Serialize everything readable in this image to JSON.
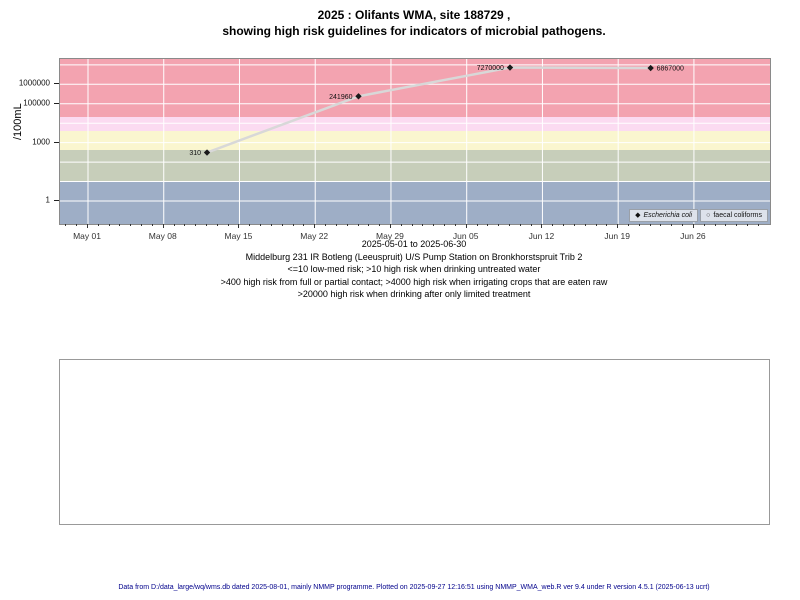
{
  "title": {
    "line1": "2025 : Olifants WMA, site 188729 ,",
    "line2": "showing high risk guidelines for indicators of microbial pathogens."
  },
  "chart_data": {
    "type": "line",
    "y_scale": "log10",
    "ylabel": "/100mL",
    "y_tick_values": [
      1000000,
      100000,
      1000,
      1
    ],
    "y_tick_labels": [
      "1000000",
      "100000",
      "1000",
      "1"
    ],
    "grid_decades": [
      1,
      10,
      100,
      1000,
      10000,
      100000,
      1000000,
      10000000
    ],
    "x_tick_labels": [
      "May 01",
      "May 08",
      "May 15",
      "May 22",
      "May 29",
      "Jun 05",
      "Jun 12",
      "Jun 19",
      "Jun 26"
    ],
    "x_range_label": "2025-05-01 to 2025-06-30",
    "x_start_date": "2025-05-01",
    "series": [
      {
        "name": "Escherichia coli",
        "marker": "filled-diamond",
        "line_color": "#d8d8d8",
        "point_color": "#1a1a1a",
        "points": [
          {
            "date": "2025-05-12",
            "value": 310,
            "label": "310",
            "label_side": "left"
          },
          {
            "date": "2025-05-26",
            "value": 241960,
            "label": "241960",
            "label_side": "left"
          },
          {
            "date": "2025-06-09",
            "value": 7270000,
            "label": "7270000",
            "label_side": "left"
          },
          {
            "date": "2025-06-22",
            "value": 6867000,
            "label": "6867000",
            "label_side": "right"
          }
        ]
      },
      {
        "name": "faecal coliforms",
        "marker": "open-circle",
        "points": []
      }
    ],
    "risk_bands": [
      {
        "range": "<=10",
        "meaning": "low-med risk",
        "color": "#9eaec6",
        "upper": 10
      },
      {
        "range": ">10",
        "meaning": "high risk when drinking untreated water",
        "color": "#c7ceba",
        "upper": 400
      },
      {
        "range": ">400",
        "meaning": "high risk from full or partial contact",
        "color": "#faf6cf",
        "upper": 4000
      },
      {
        "range": ">4000",
        "meaning": "high risk when irrigating crops that are eaten raw",
        "color": "#fbdbf1",
        "upper": 20000
      },
      {
        "range": ">20000",
        "meaning": "high risk when drinking after only limited treatment",
        "color": "#f3a3b0",
        "upper": null
      }
    ],
    "grid_color": "#ffffff",
    "legend_position": "bottom-right"
  },
  "legend": {
    "items": [
      {
        "label": "Escherichia coli",
        "marker": "filled-diamond",
        "italic": true
      },
      {
        "label": "faecal coliforms",
        "marker": "open-circle",
        "italic": false
      }
    ]
  },
  "captions": [
    "2025-05-01 to 2025-06-30",
    "Middelburg 231 IR Botleng (Leeuspruit) U/S Pump Station on Bronkhorstspruit Trib 2",
    "<=10 low-med risk; >10 high risk when drinking untreated water",
    ">400 high risk from full or partial contact; >4000 high risk when irrigating crops that are eaten raw",
    ">20000 high risk when drinking after only limited treatment"
  ],
  "footer": "Data from D:/data_large/wq/wms.db dated 2025-08-01, mainly NMMP programme. Plotted on 2025-09-27 12:16:51 using NMMP_WMA_web.R ver 9.4 under R version 4.5.1 (2025-06-13 ucrt)"
}
